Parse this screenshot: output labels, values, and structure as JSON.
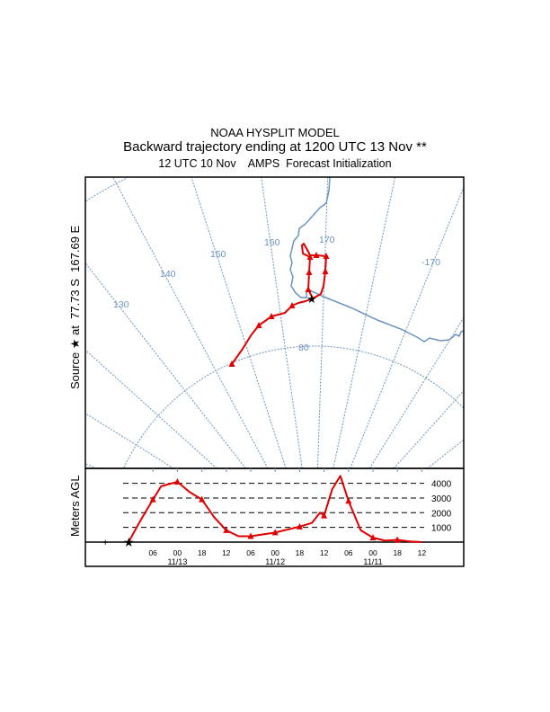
{
  "header": {
    "title": "NOAA HYSPLIT MODEL",
    "subtitle": "Backward trajectory ending at 1200 UTC 13 Nov **",
    "init": "12 UTC 10 Nov    AMPS  Forecast Initialization"
  },
  "map": {
    "source_label": "Source ★ at  77.73 S  167.69 E",
    "meridian_labels": [
      "130",
      "140",
      "150",
      "160",
      "170",
      "-170"
    ],
    "latitude_labels": [
      "80"
    ],
    "colors": {
      "grid": "#6a93bf",
      "coast": "#6a93bf",
      "trajectory": "#e00000"
    }
  },
  "chart_data": {
    "type": "line",
    "ylabel": "Meters AGL",
    "ytick_labels": [
      "4000",
      "3000",
      "2000",
      "1000"
    ],
    "yticks": [
      4000,
      3000,
      2000,
      1000
    ],
    "ylim": [
      0,
      4700
    ],
    "xtick_labels": [
      "06",
      "00",
      "18",
      "12",
      "06",
      "00",
      "18",
      "12",
      "06",
      "00",
      "18",
      "12"
    ],
    "date_labels": [
      "11/13",
      "11/12",
      "11/11"
    ],
    "x_hours_back": [
      0,
      3,
      6,
      8,
      12,
      15,
      18,
      21,
      24,
      27,
      30,
      36,
      42,
      45,
      47,
      48,
      50,
      52,
      54,
      57,
      60,
      63,
      66,
      69,
      72
    ],
    "series": [
      {
        "name": "trajectory height",
        "values": [
          0,
          1500,
          2900,
          3800,
          4100,
          3400,
          2900,
          1700,
          800,
          400,
          400,
          650,
          1050,
          1300,
          2000,
          1800,
          3600,
          4500,
          2800,
          800,
          300,
          100,
          150,
          50,
          0
        ]
      }
    ],
    "marker_hours": [
      6,
      12,
      18,
      24,
      30,
      36,
      42,
      48,
      54,
      60,
      66
    ]
  }
}
